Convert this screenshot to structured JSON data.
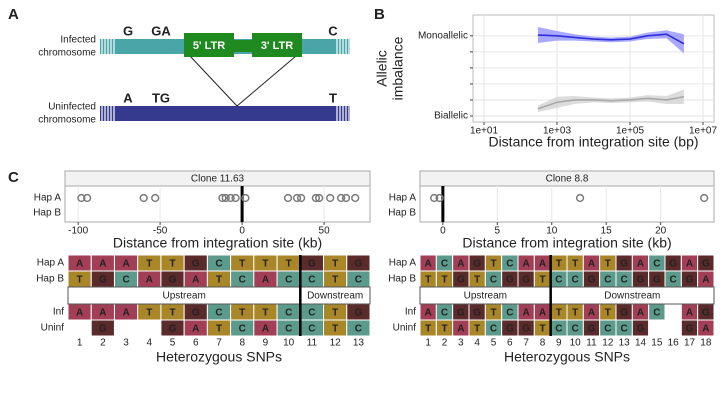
{
  "panel_labels": [
    "A",
    "B",
    "C"
  ],
  "diagram": {
    "infected_label": [
      "Infected",
      "chromosome"
    ],
    "uninfected_label": [
      "Uninfected",
      "chromosome"
    ],
    "infected_bases": [
      "G",
      "GA",
      "C"
    ],
    "uninfected_bases": [
      "A",
      "TG",
      "T"
    ],
    "ltrs": [
      "5' LTR",
      "3' LTR"
    ]
  },
  "chart_data": [
    {
      "type": "line",
      "x_label": "Distance from integration site (bp)",
      "y_label": [
        "Allelic",
        "imbalance"
      ],
      "xlog": true,
      "grid": true,
      "xlim": [
        5,
        20000000
      ],
      "xticks": [
        {
          "value": 10,
          "label": "1e+01"
        },
        {
          "value": 1000,
          "label": "1e+03"
        },
        {
          "value": 100000,
          "label": "1e+05"
        },
        {
          "value": 10000000,
          "label": "1e+07"
        }
      ],
      "ylim": [
        -0.075,
        1.26
      ],
      "yticks": [
        {
          "value": 1,
          "label": "Monoallelic"
        },
        {
          "value": 0,
          "label": "Biallelic"
        }
      ],
      "yminorticks": [
        0.2,
        0.4,
        0.6,
        0.8
      ],
      "x": [
        300,
        1000,
        3000,
        10000,
        30000,
        100000,
        300000,
        1000000,
        3000000
      ],
      "series": [
        {
          "color": "#2f2fd6",
          "band_color": "#8c8cff",
          "values": [
            1.01,
            1.0,
            0.98,
            0.96,
            0.95,
            0.96,
            1.0,
            1.02,
            0.9
          ],
          "lower": [
            0.91,
            0.94,
            0.94,
            0.93,
            0.92,
            0.93,
            0.96,
            0.97,
            0.78
          ],
          "upper": [
            1.11,
            1.06,
            1.02,
            0.99,
            0.98,
            0.99,
            1.04,
            1.07,
            1.02
          ]
        },
        {
          "color": "#a8a8a8",
          "band_color": "#d0d0d0",
          "values": [
            0.09,
            0.17,
            0.2,
            0.2,
            0.19,
            0.2,
            0.22,
            0.2,
            0.24
          ],
          "lower": [
            0.05,
            0.1,
            0.15,
            0.17,
            0.16,
            0.17,
            0.18,
            0.15,
            0.15
          ],
          "upper": [
            0.13,
            0.24,
            0.25,
            0.23,
            0.22,
            0.23,
            0.26,
            0.25,
            0.33
          ]
        }
      ]
    },
    {
      "type": "strip",
      "title": "Clone 11.63",
      "x_label": "Distance from integration site (kb)",
      "categories": [
        "Hap A",
        "Hap B"
      ],
      "xlim": [
        -108,
        78
      ],
      "xticks": [
        -100,
        -50,
        0,
        50
      ],
      "vline": 0,
      "series": [
        {
          "values": [
            -98,
            -94.5,
            -60,
            -53,
            -12,
            -10,
            -7,
            -4,
            2,
            28,
            33.5,
            36,
            45,
            47,
            53.7,
            60.4,
            63.4,
            69
          ]
        },
        {
          "values": []
        }
      ]
    },
    {
      "type": "strip",
      "title": "Clone 8.8",
      "x_label": "Distance from integration site (kb)",
      "categories": [
        "Hap A",
        "Hap B"
      ],
      "xlim": [
        -2.1,
        24.9
      ],
      "xticks": [
        0,
        5,
        10,
        15,
        20
      ],
      "vline": 0,
      "series": [
        {
          "values": [
            -0.8,
            -0.3,
            12.6,
            24.0
          ]
        },
        {
          "values": []
        }
      ]
    }
  ],
  "snp_tables": [
    {
      "row_labels": [
        "Hap A",
        "Hap B",
        "Inf",
        "Uninf"
      ],
      "sections": [
        "Upstream",
        "Downstream"
      ],
      "x_label": "Heterozygous SNPs",
      "columns": [
        1,
        2,
        3,
        4,
        5,
        6,
        7,
        8,
        9,
        10,
        11,
        12,
        13
      ],
      "rows": [
        [
          "A",
          "A",
          "A",
          "T",
          "T",
          "G",
          "C",
          "T",
          "T",
          "T",
          "G",
          "T",
          "G"
        ],
        [
          "T",
          "G",
          "C",
          "A",
          "G",
          "A",
          "T",
          "C",
          "A",
          "C",
          "C",
          "T",
          "C"
        ],
        [
          "A",
          "A",
          "A",
          "T",
          "T",
          "G",
          "C",
          "T",
          "T",
          "C",
          "C",
          "T",
          "G"
        ],
        [
          null,
          "G",
          null,
          null,
          "G",
          "A",
          "T",
          "C",
          "A",
          "C",
          "C",
          "T",
          "C"
        ]
      ]
    },
    {
      "row_labels": [
        "Hap A",
        "Hap B",
        "Inf",
        "Uninf"
      ],
      "sections": [
        "Upstream",
        "Downstream"
      ],
      "x_label": "Heterozygous SNPs",
      "columns": [
        1,
        2,
        3,
        4,
        5,
        6,
        7,
        8,
        9,
        10,
        11,
        12,
        13,
        14,
        15,
        16,
        17,
        18
      ],
      "rows": [
        [
          "A",
          "C",
          "A",
          "G",
          "T",
          "C",
          "A",
          "A",
          "T",
          "T",
          "A",
          "T",
          "G",
          "A",
          "C",
          "G",
          "A",
          "G"
        ],
        [
          "T",
          "T",
          "G",
          "T",
          "C",
          "G",
          "G",
          "T",
          "C",
          "C",
          "G",
          "C",
          "C",
          "G",
          "G",
          "C",
          "G",
          "A"
        ],
        [
          "A",
          "C",
          "G",
          "G",
          "T",
          "C",
          "A",
          "A",
          "T",
          "T",
          "A",
          "T",
          "G",
          "A",
          "C",
          null,
          "A",
          "G"
        ],
        [
          "T",
          "T",
          "A",
          "T",
          "C",
          "G",
          "G",
          "T",
          "C",
          "C",
          "G",
          "C",
          "C",
          "G",
          null,
          null,
          "G",
          "A"
        ]
      ]
    }
  ]
}
